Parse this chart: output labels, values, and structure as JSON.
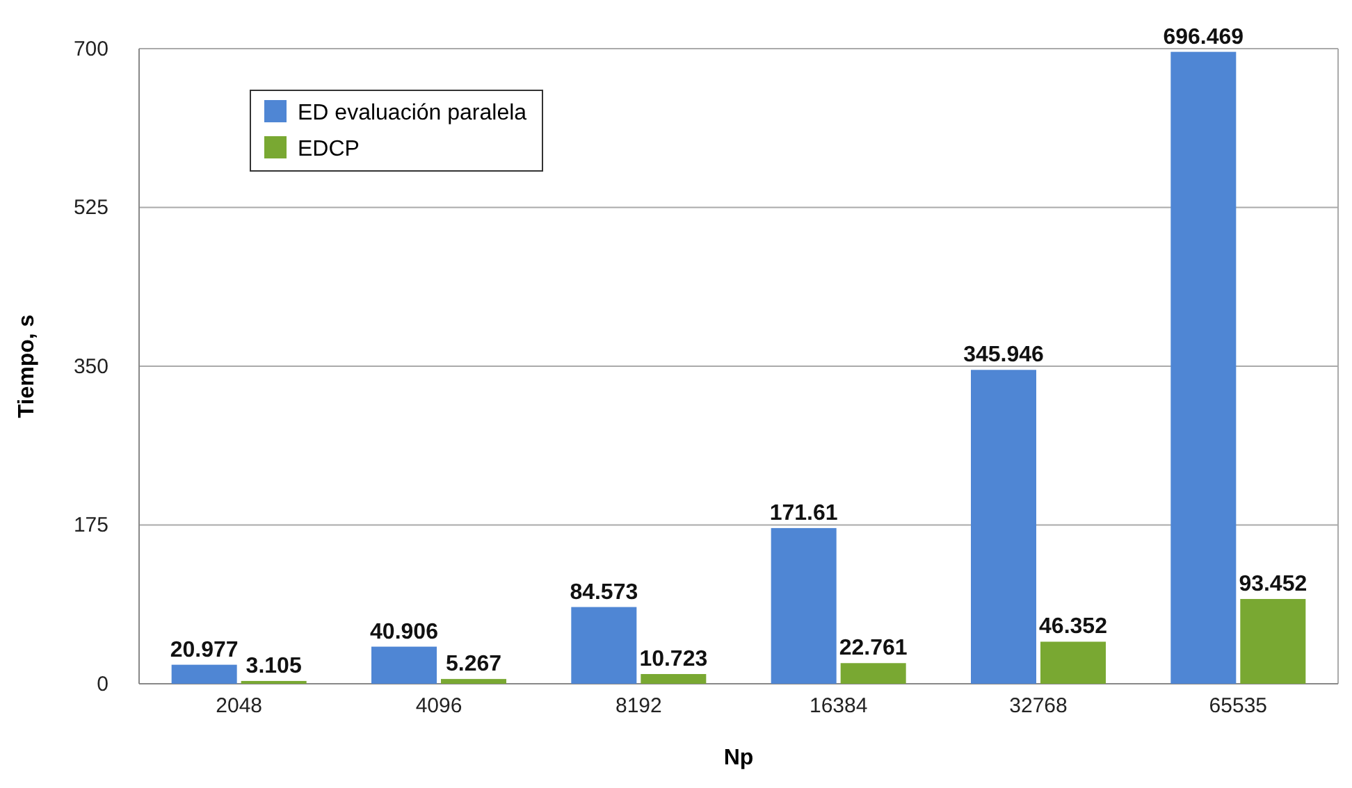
{
  "chart_data": {
    "type": "bar",
    "xlabel": "Np",
    "ylabel": "Tiempo, s",
    "categories": [
      "2048",
      "4096",
      "8192",
      "16384",
      "32768",
      "65535"
    ],
    "series": [
      {
        "name": "ED evaluación paralela",
        "color": "#4f86d4",
        "values": [
          20.977,
          40.906,
          84.573,
          171.61,
          345.946,
          696.469
        ]
      },
      {
        "name": "EDCP",
        "color": "#79a832",
        "values": [
          3.105,
          5.267,
          10.723,
          22.761,
          46.352,
          93.452
        ]
      }
    ],
    "ylim": [
      0,
      700
    ],
    "yticks": [
      0,
      175,
      350,
      525,
      700
    ],
    "grid": "y",
    "legend": "top left",
    "data_labels": true
  }
}
